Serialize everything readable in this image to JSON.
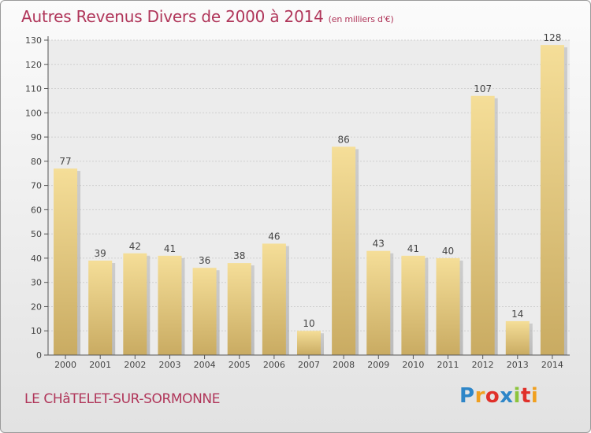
{
  "header": {
    "title": "Autres Revenus Divers de 2000 à 2014",
    "subtitle": "(en milliers d'€)"
  },
  "footer": {
    "commune": "LE CHâTELET-SUR-SORMONNE",
    "brand": "Proxiti",
    "brand_colors": [
      "#2e86c8",
      "#f0a020",
      "#e0302a",
      "#2e86c8",
      "#8cc43c",
      "#e0302a",
      "#f0a020"
    ]
  },
  "chart_data": {
    "type": "bar",
    "categories": [
      "2000",
      "2001",
      "2002",
      "2003",
      "2004",
      "2005",
      "2006",
      "2007",
      "2008",
      "2009",
      "2010",
      "2011",
      "2012",
      "2013",
      "2014"
    ],
    "values": [
      77,
      39,
      42,
      41,
      36,
      38,
      46,
      10,
      86,
      43,
      41,
      40,
      107,
      14,
      128
    ],
    "ylim": [
      0,
      130
    ],
    "yticks": [
      0,
      10,
      20,
      30,
      40,
      50,
      60,
      70,
      80,
      90,
      100,
      110,
      120,
      130
    ],
    "grid": true,
    "bar_color": "#e8cc80",
    "title_color": "#b0365a"
  }
}
